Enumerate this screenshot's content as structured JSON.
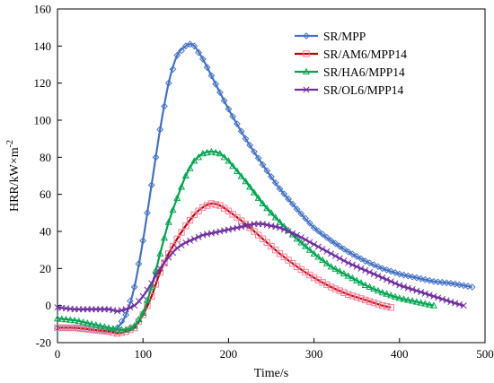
{
  "chart_data": {
    "type": "line",
    "title": "",
    "xlabel": "Time/s",
    "ylabel": "HRR/kW×m",
    "ylabel_sup": "-2",
    "xlim": [
      0,
      500
    ],
    "ylim": [
      -20,
      160
    ],
    "xticks": [
      0,
      100,
      200,
      300,
      400,
      500
    ],
    "yticks": [
      -20,
      0,
      20,
      40,
      60,
      80,
      100,
      120,
      140,
      160
    ],
    "grid": false,
    "legend_position": "top-right",
    "series": [
      {
        "name": "SR/MPP",
        "color": "#4472C4",
        "marker_color": "#4472C4",
        "marker": "diamond",
        "x": [
          0,
          20,
          40,
          60,
          70,
          80,
          90,
          100,
          110,
          120,
          130,
          140,
          150,
          155,
          160,
          170,
          180,
          200,
          220,
          240,
          260,
          280,
          300,
          320,
          340,
          360,
          380,
          400,
          420,
          440,
          460,
          485
        ],
        "y": [
          -12,
          -12,
          -13,
          -14,
          -12,
          -5,
          10,
          35,
          65,
          95,
          120,
          135,
          140,
          141,
          140,
          133,
          124,
          106,
          90,
          76,
          63,
          52,
          42,
          35,
          29,
          24,
          20,
          17,
          15,
          13,
          12,
          10
        ]
      },
      {
        "name": "SR/AM6/MPP14",
        "color": "#C00000",
        "marker_color": "#F47E9A",
        "marker": "square",
        "x": [
          0,
          20,
          40,
          60,
          70,
          80,
          90,
          100,
          110,
          120,
          130,
          140,
          150,
          160,
          170,
          180,
          190,
          200,
          220,
          240,
          260,
          280,
          300,
          320,
          340,
          360,
          380,
          390
        ],
        "y": [
          -12,
          -12,
          -13,
          -14,
          -15,
          -14,
          -12,
          -5,
          5,
          18,
          28,
          36,
          43,
          49,
          53,
          55,
          54,
          51,
          44,
          36,
          28,
          21,
          15,
          10,
          6,
          3,
          0,
          -1
        ]
      },
      {
        "name": "SR/HA6/MPP14",
        "color": "#00A651",
        "marker_color": "#00A651",
        "marker": "triangle",
        "x": [
          0,
          20,
          40,
          60,
          70,
          80,
          90,
          100,
          110,
          120,
          130,
          140,
          150,
          160,
          170,
          180,
          190,
          200,
          220,
          240,
          260,
          280,
          300,
          320,
          340,
          360,
          380,
          400,
          420,
          440
        ],
        "y": [
          -7,
          -8,
          -10,
          -12,
          -13,
          -13,
          -11,
          -4,
          10,
          28,
          45,
          58,
          70,
          78,
          82,
          83,
          82,
          78,
          67,
          55,
          45,
          36,
          28,
          21,
          16,
          11,
          7,
          4,
          2,
          0
        ]
      },
      {
        "name": "SR/OL6/MPP14",
        "color": "#7030A0",
        "marker_color": "#7030A0",
        "marker": "x",
        "x": [
          0,
          20,
          40,
          60,
          70,
          80,
          90,
          100,
          110,
          120,
          130,
          140,
          150,
          160,
          170,
          180,
          190,
          200,
          210,
          220,
          230,
          240,
          250,
          260,
          280,
          300,
          320,
          340,
          360,
          380,
          400,
          420,
          440,
          460,
          475
        ],
        "y": [
          -1,
          -2,
          -2,
          -2,
          -3,
          -2,
          0,
          5,
          12,
          20,
          26,
          31,
          34,
          36,
          38,
          39,
          40,
          41,
          42,
          43,
          44,
          44,
          43,
          42,
          38,
          33,
          28,
          23,
          19,
          15,
          11,
          8,
          5,
          2,
          0
        ]
      }
    ]
  }
}
